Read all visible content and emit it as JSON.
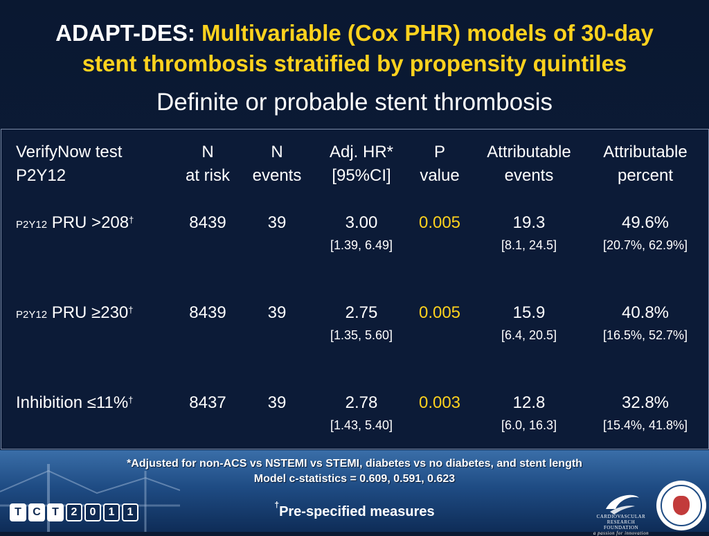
{
  "title": {
    "prefix": "ADAPT-DES:",
    "highlight_line1": "Multivariable (Cox PHR) models of 30-day",
    "highlight_line2": "stent thrombosis stratified by propensity quintiles"
  },
  "subtitle": "Definite or probable stent thrombosis",
  "table": {
    "headers": {
      "test_line1": "VerifyNow test",
      "test_line2": "P2Y12",
      "n_risk_line1": "N",
      "n_risk_line2": "at risk",
      "n_events_line1": "N",
      "n_events_line2": "events",
      "hr_line1": "Adj. HR*",
      "hr_line2": "[95%CI]",
      "p_line1": "P",
      "p_line2": "value",
      "attr_events_line1": "Attributable",
      "attr_events_line2": "events",
      "attr_pct_line1": "Attributable",
      "attr_pct_line2": "percent"
    },
    "rows": [
      {
        "prefix": "P2Y12",
        "label": "PRU >208",
        "dagger": "†",
        "n_risk": "8439",
        "n_events": "39",
        "hr": "3.00",
        "hr_ci": "[1.39, 6.49]",
        "p": "0.005",
        "attr_events": "19.3",
        "attr_events_ci": "[8.1, 24.5]",
        "attr_pct": "49.6%",
        "attr_pct_ci": "[20.7%, 62.9%]"
      },
      {
        "prefix": "P2Y12",
        "label": "PRU ≥230",
        "dagger": "†",
        "n_risk": "8439",
        "n_events": "39",
        "hr": "2.75",
        "hr_ci": "[1.35, 5.60]",
        "p": "0.005",
        "attr_events": "15.9",
        "attr_events_ci": "[6.4, 20.5]",
        "attr_pct": "40.8%",
        "attr_pct_ci": "[16.5%, 52.7%]"
      },
      {
        "prefix": "",
        "label": "Inhibition ≤11%",
        "dagger": "†",
        "n_risk": "8437",
        "n_events": "39",
        "hr": "2.78",
        "hr_ci": "[1.43, 5.40]",
        "p": "0.003",
        "attr_events": "12.8",
        "attr_events_ci": "[6.0, 16.3]",
        "attr_pct": "32.8%",
        "attr_pct_ci": "[15.4%, 41.8%]"
      }
    ]
  },
  "footnotes": {
    "adjusted": "*Adjusted for non-ACS vs NSTEMI vs STEMI, diabetes vs no diabetes, and stent length",
    "cstat": "Model c-statistics = 0.609, 0.591, 0.623",
    "dagger": "†",
    "prespecified": "Pre-specified measures"
  },
  "logos": {
    "tct_letters": [
      "T",
      "C",
      "T",
      "2",
      "0",
      "1",
      "1"
    ],
    "crf_line1": "CARDIOVASCULAR",
    "crf_line2": "RESEARCH FOUNDATION",
    "crf_tagline": "a passion for innovation"
  },
  "colors": {
    "background": "#0b1a33",
    "highlight": "#ffd21e",
    "text": "#ffffff",
    "footer_band": "#1f4c84"
  }
}
